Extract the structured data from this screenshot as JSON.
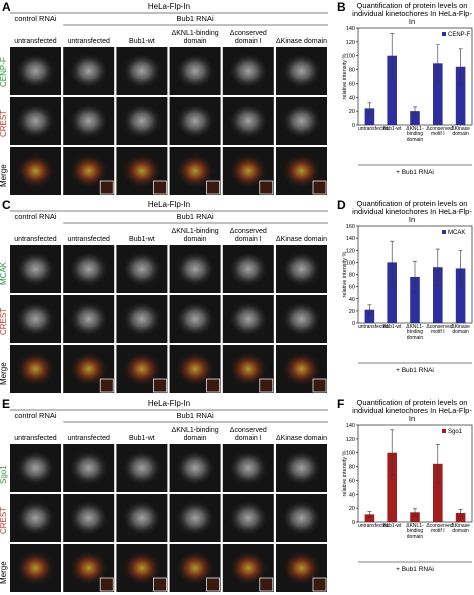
{
  "panels": [
    {
      "letter": "A",
      "header": "HeLa-Flp-In",
      "groups": [
        "control RNAi",
        "Bub1 RNAi"
      ],
      "columns": [
        "untransfected",
        "untransfected",
        "Bub1-wt",
        "ΔKNL1-binding domain",
        "Δconserved domain I",
        "ΔKinase domain"
      ],
      "rows": [
        "CENP-F",
        "CREST",
        "Merge"
      ]
    },
    {
      "letter": "C",
      "header": "HeLa-Flp-In",
      "groups": [
        "control RNAi",
        "Bub1 RNAi"
      ],
      "columns": [
        "untransfected",
        "untransfected",
        "Bub1-wt",
        "ΔKNL1-binding domain",
        "Δconserved domain I",
        "ΔKinase domain"
      ],
      "rows": [
        "MCAK",
        "CREST",
        "Merge"
      ]
    },
    {
      "letter": "E",
      "header": "HeLa-Flp-In",
      "groups": [
        "control RNAi",
        "Bub1 RNAi"
      ],
      "columns": [
        "untransfected",
        "untransfected",
        "Bub1-wt",
        "ΔKNL1-binding domain",
        "Δconserved domain I",
        "ΔKinase domain"
      ],
      "rows": [
        "Sgo1",
        "CREST",
        "Merge"
      ]
    }
  ],
  "chart_data": [
    {
      "type": "bar",
      "panel_label": "B",
      "title": "Quantification of protein levels on individual kinetochores In HeLa-Flp-In",
      "y_label": "relative intensity %",
      "group_label": "+ Bub1 RNAi",
      "categories": [
        "untransfected",
        "Bub1-wt",
        "ΔKNL1-binding domain",
        "Δconserved motif I",
        "ΔKinase domain"
      ],
      "series": [
        {
          "name": "CENP-F",
          "color": "#2d2f9c",
          "values": [
            24,
            100,
            20,
            89,
            84
          ],
          "errors": [
            8,
            32,
            6,
            27,
            26
          ]
        }
      ],
      "ylim": [
        0,
        140
      ],
      "yticks": [
        0,
        20,
        40,
        60,
        80,
        100,
        120,
        140
      ],
      "legend": "top-right"
    },
    {
      "type": "bar",
      "panel_label": "D",
      "title": "Quantification of protein levels on individual kinetochores In HeLa-Flp-In",
      "y_label": "relative intensity %",
      "group_label": "+ Bub1 RNAi",
      "categories": [
        "untransfected",
        "Bub1-wt",
        "ΔKNL1-binding domain",
        "Δconserved motif I",
        "ΔKinase domain"
      ],
      "series": [
        {
          "name": "MCAK",
          "color": "#2d2f9c",
          "values": [
            22,
            100,
            76,
            92,
            90
          ],
          "errors": [
            8,
            35,
            26,
            30,
            30
          ]
        }
      ],
      "ylim": [
        0,
        160
      ],
      "yticks": [
        0,
        20,
        40,
        60,
        80,
        100,
        120,
        140,
        160
      ],
      "legend": "top-right"
    },
    {
      "type": "bar",
      "panel_label": "F",
      "title": "Quantification of protein levels on individual kinetochores In HeLa-Flp-In",
      "y_label": "relative intensity %",
      "group_label": "+ Bub1 RNAi",
      "categories": [
        "untransfected",
        "Bub1-wt",
        "ΔKNL1-binding domain",
        "Δconserved motif I",
        "ΔKinase domain"
      ],
      "series": [
        {
          "name": "Sgo1",
          "color": "#a11c1c",
          "values": [
            11,
            100,
            14,
            84,
            13
          ],
          "errors": [
            4,
            33,
            5,
            28,
            5
          ]
        }
      ],
      "ylim": [
        0,
        140
      ],
      "yticks": [
        0,
        20,
        40,
        60,
        80,
        100,
        120,
        140
      ],
      "legend": "top-right"
    }
  ]
}
